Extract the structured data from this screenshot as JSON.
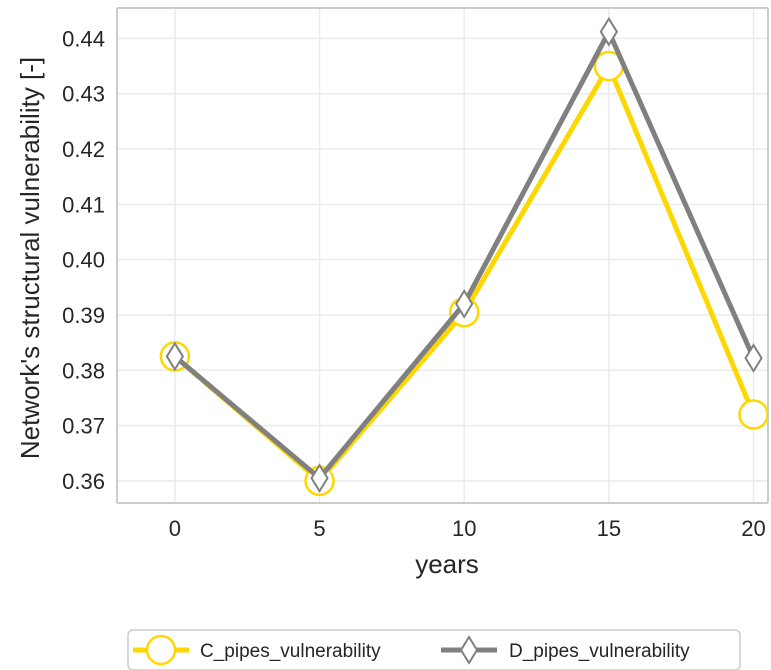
{
  "chart_data": {
    "type": "line",
    "title": "",
    "xlabel": "years",
    "ylabel": "Network's structural vulnerability [-]",
    "x": [
      0,
      5,
      10,
      15,
      20
    ],
    "xlim": [
      -2,
      20.5
    ],
    "ylim": [
      0.356,
      0.4455
    ],
    "x_ticks": [
      "0",
      "5",
      "10",
      "15",
      "20"
    ],
    "y_ticks": [
      "0.36",
      "0.37",
      "0.38",
      "0.39",
      "0.40",
      "0.41",
      "0.42",
      "0.43",
      "0.44"
    ],
    "y_tick_values": [
      0.36,
      0.37,
      0.38,
      0.39,
      0.4,
      0.41,
      0.42,
      0.43,
      0.44
    ],
    "grid": true,
    "legend_position": "bottom",
    "series": [
      {
        "name": "C_pipes_vulnerability",
        "values": [
          0.3825,
          0.36,
          0.3905,
          0.435,
          0.372
        ],
        "color": "#FFD700",
        "marker": "circle"
      },
      {
        "name": "D_pipes_vulnerability",
        "values": [
          0.3825,
          0.3605,
          0.392,
          0.4412,
          0.3822
        ],
        "color": "#808080",
        "marker": "diamond"
      }
    ]
  }
}
